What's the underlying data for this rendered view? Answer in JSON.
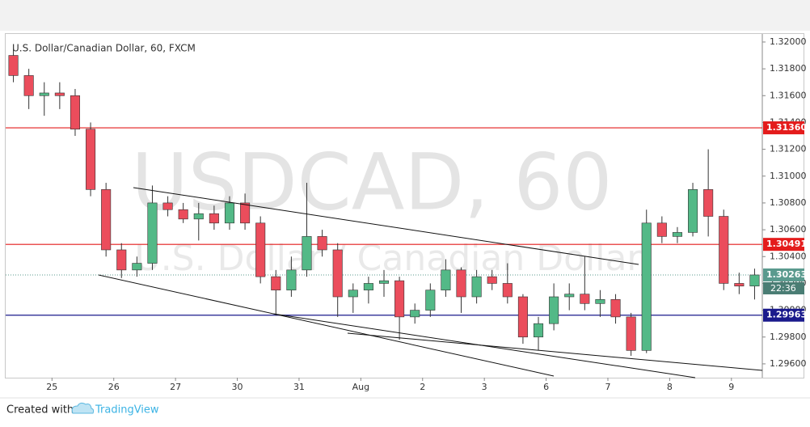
{
  "chart_data": {
    "type": "candlestick",
    "title": "U.S. Dollar/Canadian Dollar, 60, FXCM",
    "watermark": "USDCAD, 60",
    "watermark_subtitle": "U.S. Dollar / Canadian Dollar",
    "categories": [
      null,
      null,
      null,
      "25",
      null,
      null,
      null,
      "26",
      null,
      null,
      null,
      "27",
      null,
      null,
      null,
      "30",
      null,
      null,
      null,
      "31",
      null,
      null,
      null,
      "Aug",
      null,
      null,
      null,
      "2",
      null,
      null,
      null,
      "3",
      null,
      null,
      null,
      "6",
      null,
      null,
      null,
      "7",
      null,
      null,
      null,
      "8",
      null,
      null,
      null,
      "9",
      null
    ],
    "open": [
      1.319,
      1.3175,
      1.316,
      1.3162,
      1.316,
      1.3135,
      1.309,
      1.3045,
      1.303,
      1.3035,
      1.308,
      1.3075,
      1.3068,
      1.3072,
      1.3065,
      1.308,
      1.3065,
      1.3025,
      1.3015,
      1.303,
      1.3055,
      1.3045,
      1.301,
      1.3015,
      1.302,
      1.3022,
      1.2995,
      1.3,
      1.3015,
      1.303,
      1.301,
      1.3025,
      1.302,
      1.301,
      1.298,
      1.299,
      1.301,
      1.3012,
      1.3005,
      1.3008,
      1.2995,
      1.297,
      1.3065,
      1.3055,
      1.3058,
      1.309,
      1.307,
      1.302,
      1.3018
    ],
    "high": [
      1.3195,
      1.318,
      1.317,
      1.317,
      1.3165,
      1.314,
      1.3095,
      1.305,
      1.304,
      1.3093,
      1.3085,
      1.308,
      1.308,
      1.3078,
      1.3085,
      1.3087,
      1.307,
      1.303,
      1.304,
      1.3095,
      1.306,
      1.305,
      1.302,
      1.3025,
      1.303,
      1.3025,
      1.3005,
      1.302,
      1.3038,
      1.3032,
      1.303,
      1.303,
      1.3035,
      1.3012,
      1.2995,
      1.302,
      1.302,
      1.304,
      1.3015,
      1.3012,
      1.2998,
      1.3075,
      1.307,
      1.3062,
      1.3095,
      1.312,
      1.3075,
      1.3028,
      1.3031
    ],
    "low": [
      1.317,
      1.315,
      1.3145,
      1.315,
      1.313,
      1.3085,
      1.304,
      1.3024,
      1.3025,
      1.303,
      1.307,
      1.3065,
      1.3052,
      1.306,
      1.306,
      1.306,
      1.302,
      1.2996,
      1.301,
      1.3025,
      1.304,
      1.2995,
      1.2998,
      1.3005,
      1.301,
      1.2978,
      1.299,
      1.2995,
      1.301,
      1.2998,
      1.3005,
      1.3015,
      1.3005,
      1.2975,
      1.297,
      1.2985,
      1.3,
      1.3,
      1.2995,
      1.299,
      1.2966,
      1.2968,
      1.305,
      1.305,
      1.3055,
      1.3055,
      1.3015,
      1.3012,
      1.3008
    ],
    "close": [
      1.3175,
      1.316,
      1.3162,
      1.316,
      1.3135,
      1.309,
      1.3045,
      1.303,
      1.3035,
      1.308,
      1.3075,
      1.3068,
      1.3072,
      1.3065,
      1.308,
      1.3065,
      1.3025,
      1.3015,
      1.303,
      1.3055,
      1.3045,
      1.301,
      1.3015,
      1.302,
      1.3022,
      1.2995,
      1.3,
      1.3015,
      1.303,
      1.301,
      1.3025,
      1.302,
      1.301,
      1.298,
      1.299,
      1.301,
      1.3012,
      1.3005,
      1.3008,
      1.2995,
      1.297,
      1.3065,
      1.3055,
      1.3058,
      1.309,
      1.307,
      1.302,
      1.3018,
      1.30263
    ],
    "up_color": "#53b987",
    "down_color": "#eb4d5c",
    "ylim": [
      1.29497,
      1.3206
    ],
    "yticks": [
      {
        "value": 1.296,
        "label": "1.29600"
      },
      {
        "value": 1.298,
        "label": "1.29800"
      },
      {
        "value": 1.3,
        "label": "1.30000"
      },
      {
        "value": 1.302,
        "label": "1.30200"
      },
      {
        "value": 1.304,
        "label": "1.30400"
      },
      {
        "value": 1.306,
        "label": "1.30600"
      },
      {
        "value": 1.308,
        "label": "1.30800"
      },
      {
        "value": 1.31,
        "label": "1.31000"
      },
      {
        "value": 1.312,
        "label": "1.31200"
      },
      {
        "value": 1.314,
        "label": "1.31400"
      },
      {
        "value": 1.316,
        "label": "1.31600"
      },
      {
        "value": 1.318,
        "label": "1.31800"
      },
      {
        "value": 1.32,
        "label": "1.32000"
      }
    ],
    "levels": [
      {
        "value": 1.3136,
        "label": "1.31360",
        "color": "#e41c1c"
      },
      {
        "value": 1.30491,
        "label": "1.30491",
        "color": "#e41c1c"
      },
      {
        "value": 1.29963,
        "label": "1.29963",
        "color": "#1a1a8c"
      }
    ],
    "last_price": {
      "value": 1.30263,
      "label": "1.30263",
      "color": "#5a9a8e"
    },
    "countdown": "22:36"
  },
  "footer": {
    "created_with": "Created with",
    "brand": "TradingView"
  }
}
